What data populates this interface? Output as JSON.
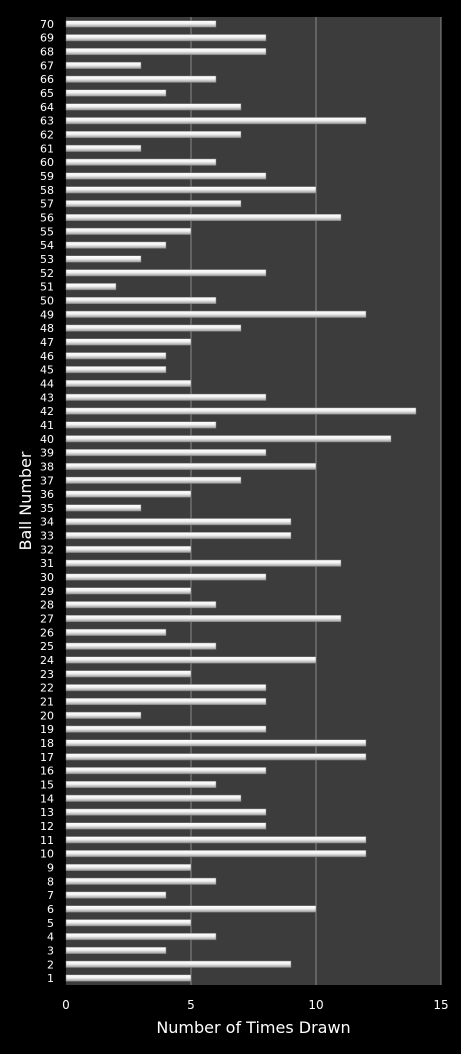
{
  "chart_data": {
    "type": "bar",
    "orientation": "horizontal",
    "title": "",
    "xlabel": "Number of Times Drawn",
    "ylabel": "Ball Number",
    "xlim": [
      0,
      15
    ],
    "xticks": [
      0,
      5,
      10,
      15
    ],
    "grid": "vertical major gridlines",
    "legend": "none",
    "colors": {
      "background": "#000000",
      "plot_area": "#3c3c3c",
      "bar": "#e8e8e8",
      "grid": "#8a8a8a",
      "text": "#ffffff"
    },
    "categories": [
      "1",
      "2",
      "3",
      "4",
      "5",
      "6",
      "7",
      "8",
      "9",
      "10",
      "11",
      "12",
      "13",
      "14",
      "15",
      "16",
      "17",
      "18",
      "19",
      "20",
      "21",
      "22",
      "23",
      "24",
      "25",
      "26",
      "27",
      "28",
      "29",
      "30",
      "31",
      "32",
      "33",
      "34",
      "35",
      "36",
      "37",
      "38",
      "39",
      "40",
      "41",
      "42",
      "43",
      "44",
      "45",
      "46",
      "47",
      "48",
      "49",
      "50",
      "51",
      "52",
      "53",
      "54",
      "55",
      "56",
      "57",
      "58",
      "59",
      "60",
      "61",
      "62",
      "63",
      "64",
      "65",
      "66",
      "67",
      "68",
      "69",
      "70"
    ],
    "values": [
      5,
      9,
      4,
      6,
      5,
      10,
      4,
      6,
      5,
      12,
      12,
      8,
      8,
      7,
      6,
      8,
      12,
      12,
      8,
      3,
      8,
      8,
      5,
      10,
      6,
      4,
      11,
      6,
      5,
      8,
      11,
      5,
      9,
      9,
      3,
      5,
      7,
      10,
      8,
      13,
      6,
      14,
      8,
      5,
      4,
      4,
      5,
      7,
      12,
      6,
      2,
      8,
      3,
      4,
      5,
      11,
      7,
      10,
      8,
      6,
      3,
      7,
      12,
      7,
      4,
      6,
      3,
      8,
      8,
      6
    ]
  }
}
